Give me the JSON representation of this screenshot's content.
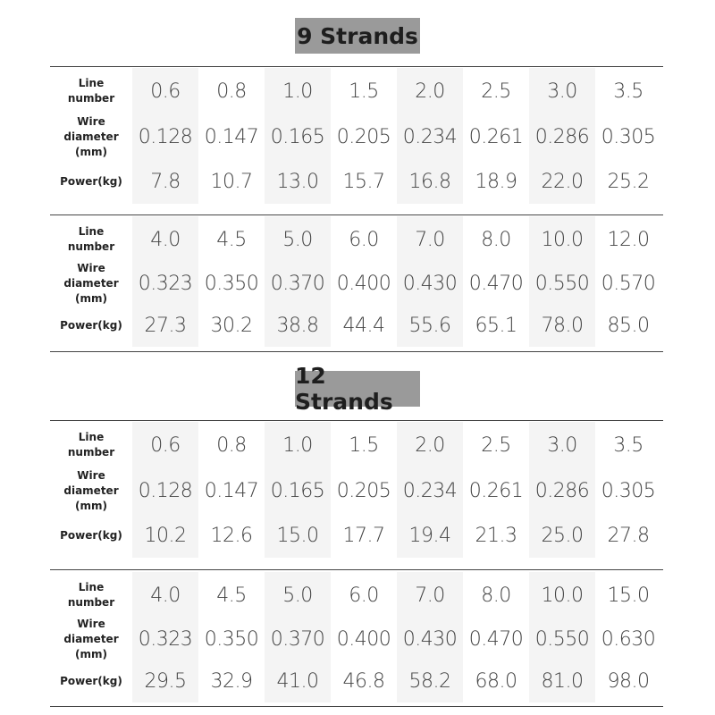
{
  "sections": [
    {
      "title": "9 Strands",
      "tables": [
        {
          "line_number": [
            "0.6",
            "0.8",
            "1.0",
            "1.5",
            "2.0",
            "2.5",
            "3.0",
            "3.5"
          ],
          "wire_diameter": [
            "0.128",
            "0.147",
            "0.165",
            "0.205",
            "0.234",
            "0.261",
            "0.286",
            "0.305"
          ],
          "power": [
            "7.8",
            "10.7",
            "13.0",
            "15.7",
            "16.8",
            "18.9",
            "22.0",
            "25.2"
          ]
        },
        {
          "line_number": [
            "4.0",
            "4.5",
            "5.0",
            "6.0",
            "7.0",
            "8.0",
            "10.0",
            "12.0"
          ],
          "wire_diameter": [
            "0.323",
            "0.350",
            "0.370",
            "0.400",
            "0.430",
            "0.470",
            "0.550",
            "0.570"
          ],
          "power": [
            "27.3",
            "30.2",
            "38.8",
            "44.4",
            "55.6",
            "65.1",
            "78.0",
            "85.0"
          ]
        }
      ]
    },
    {
      "title": "12 Strands",
      "tables": [
        {
          "line_number": [
            "0.6",
            "0.8",
            "1.0",
            "1.5",
            "2.0",
            "2.5",
            "3.0",
            "3.5"
          ],
          "wire_diameter": [
            "0.128",
            "0.147",
            "0.165",
            "0.205",
            "0.234",
            "0.261",
            "0.286",
            "0.305"
          ],
          "power": [
            "10.2",
            "12.6",
            "15.0",
            "17.7",
            "19.4",
            "21.3",
            "25.0",
            "27.8"
          ]
        },
        {
          "line_number": [
            "4.0",
            "4.5",
            "5.0",
            "6.0",
            "7.0",
            "8.0",
            "10.0",
            "15.0"
          ],
          "wire_diameter": [
            "0.323",
            "0.350",
            "0.370",
            "0.400",
            "0.430",
            "0.470",
            "0.550",
            "0.630"
          ],
          "power": [
            "29.5",
            "32.9",
            "41.0",
            "46.8",
            "58.2",
            "68.0",
            "81.0",
            "98.0"
          ]
        }
      ]
    }
  ],
  "row_labels": {
    "line_number": "Line\nnumber",
    "wire_diameter": "Wire diameter\n(mm)",
    "power": "Power(kg)"
  }
}
